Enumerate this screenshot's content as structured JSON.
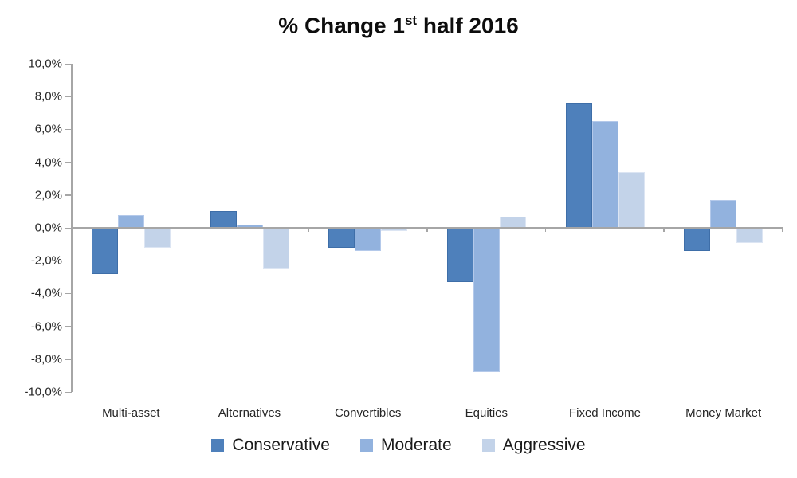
{
  "title": {
    "prefix": "% Change 1",
    "sup": "st",
    "suffix": " half 2016"
  },
  "chart_data": {
    "type": "bar",
    "title": "% Change 1st half 2016",
    "categories": [
      "Multi-asset",
      "Alternatives",
      "Convertibles",
      "Equities",
      "Fixed Income",
      "Money Market"
    ],
    "series": [
      {
        "name": "Conservative",
        "color": "#4E80BB",
        "border_color": "#3E6EA8",
        "values": [
          -2.8,
          1.0,
          -1.2,
          -3.3,
          7.6,
          -1.4
        ]
      },
      {
        "name": "Moderate",
        "color": "#92B2DE",
        "border_color": "#B4C9EA",
        "values": [
          0.8,
          0.2,
          -1.4,
          -8.8,
          6.5,
          1.7
        ]
      },
      {
        "name": "Aggressive",
        "color": "#C3D3E9",
        "border_color": "#DCE5F3",
        "values": [
          -1.2,
          -2.5,
          -0.2,
          0.7,
          3.4,
          -0.9
        ]
      }
    ],
    "ylim": [
      -10,
      10
    ],
    "ytick_step": 2,
    "ytick_labels": [
      "10,0%",
      "8,0%",
      "6,0%",
      "4,0%",
      "2,0%",
      "0,0%",
      "-2,0%",
      "-4,0%",
      "-6,0%",
      "-8,0%",
      "-10,0%"
    ],
    "value_format": "percent_comma_1dp",
    "grid": false,
    "legend_position": "bottom",
    "axis_color": "#A6A6A6",
    "text_color": "#262626",
    "background": "#FFFFFF"
  }
}
